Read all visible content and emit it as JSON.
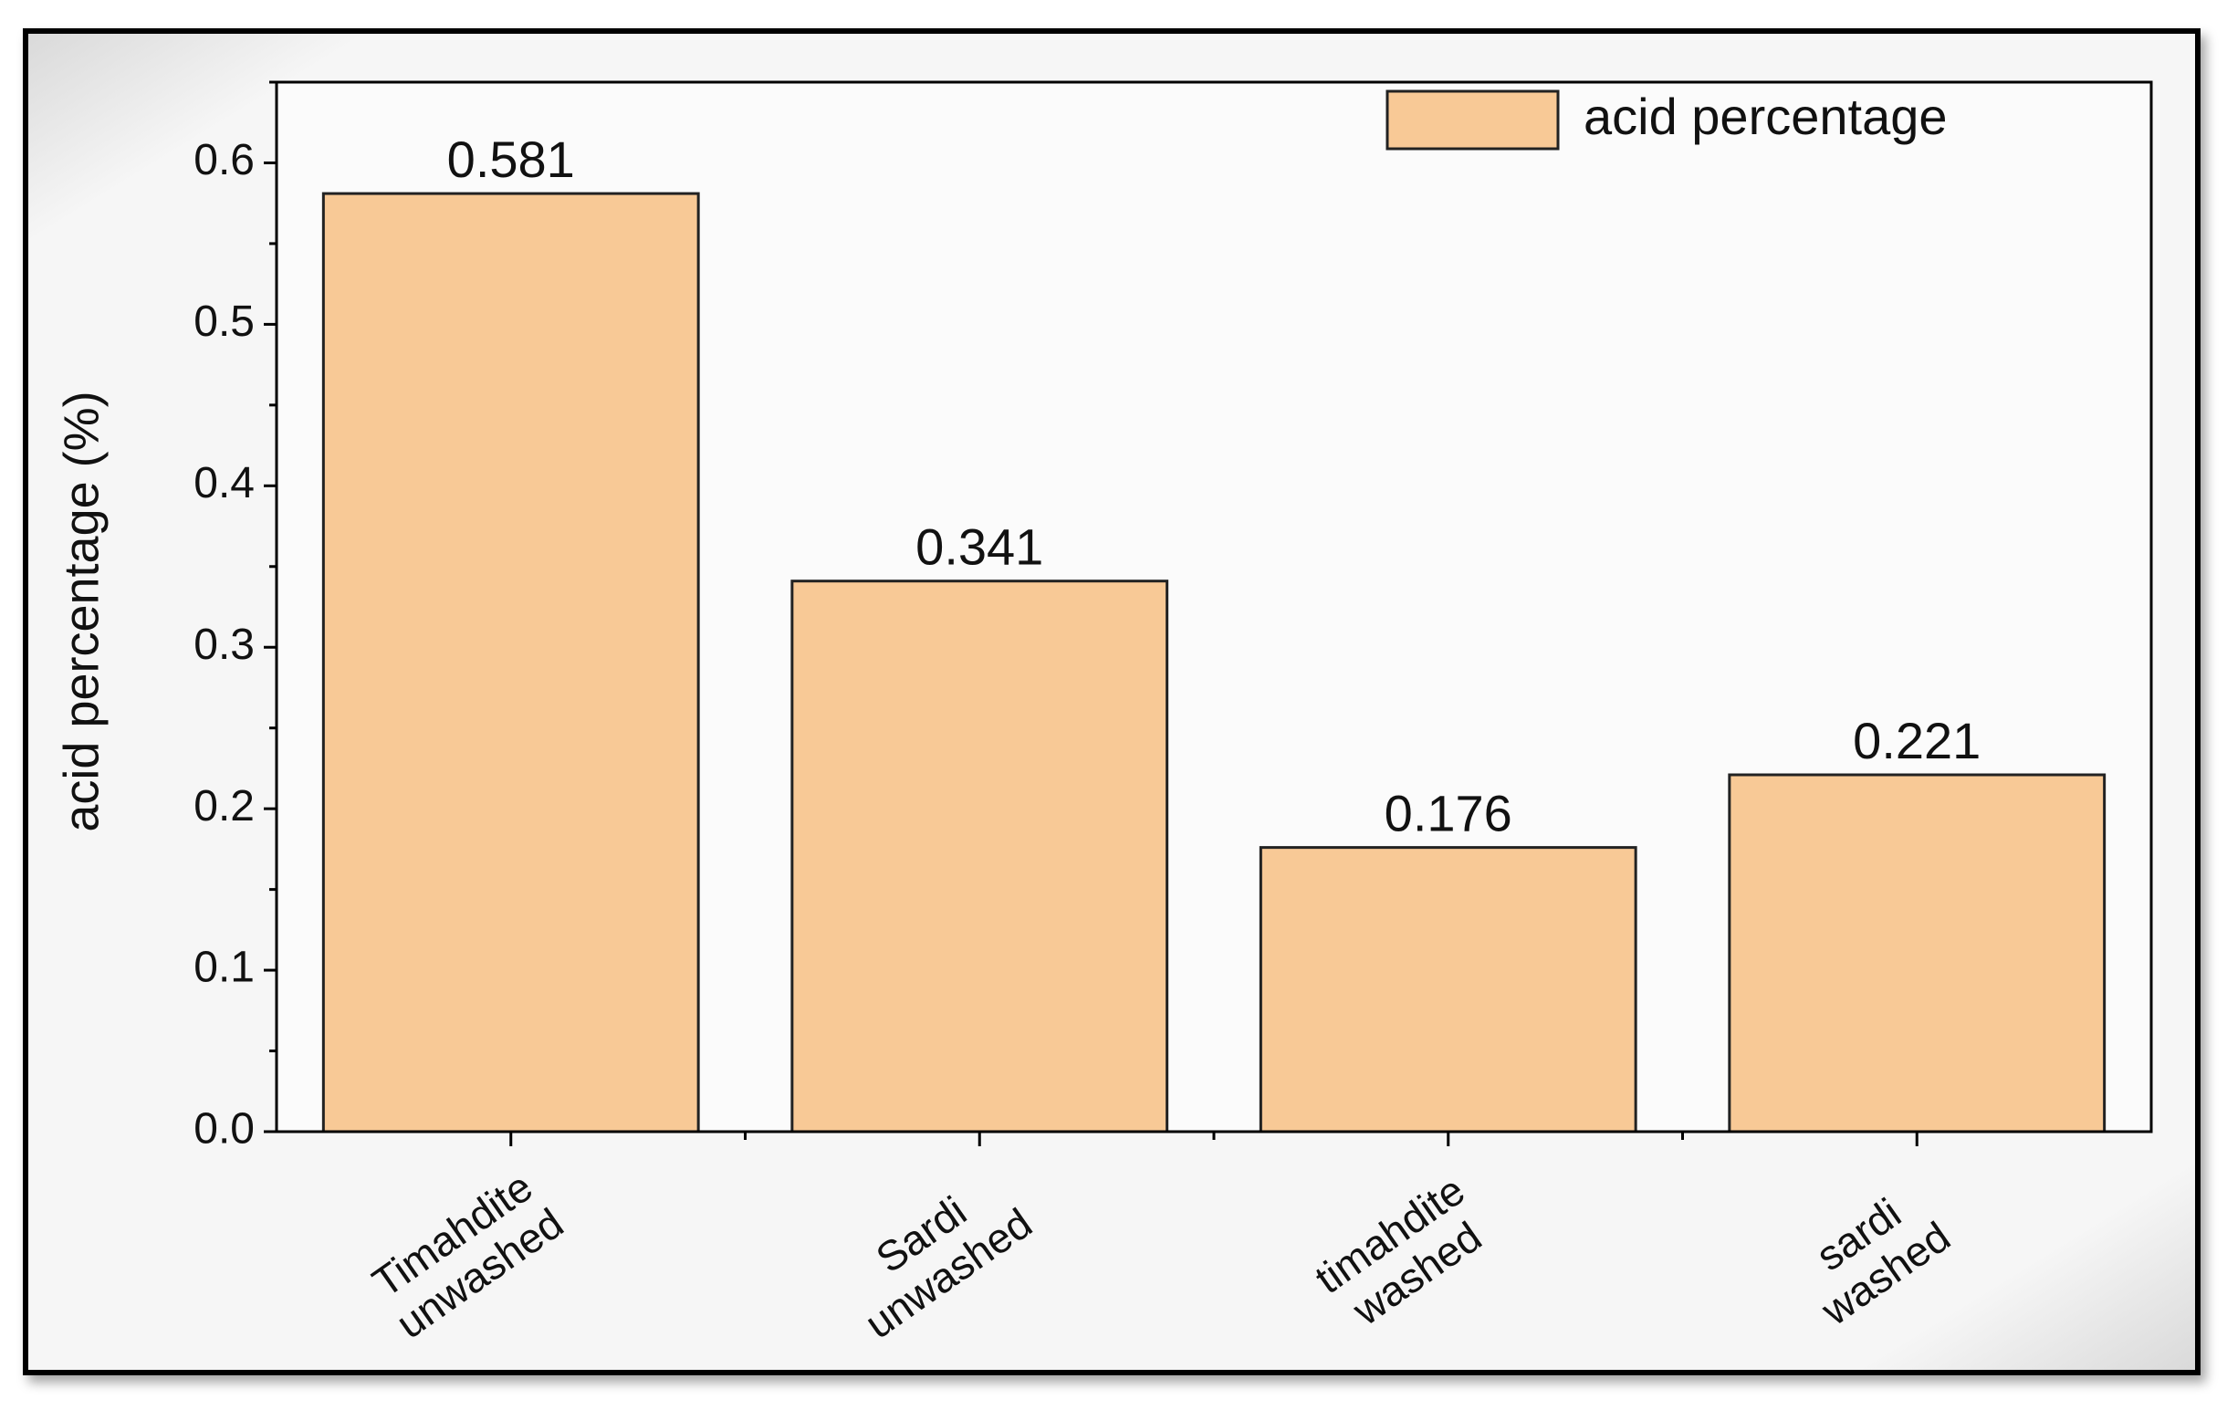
{
  "chart_data": {
    "type": "bar",
    "categories": [
      [
        "Timahdite",
        "unwashed"
      ],
      [
        "Sardi",
        "unwashed"
      ],
      [
        "timahdite",
        "washed"
      ],
      [
        "sardi",
        "washed"
      ]
    ],
    "series": [
      {
        "name": "acid percentage",
        "color": "#f8c996",
        "values": [
          0.581,
          0.341,
          0.176,
          0.221
        ]
      }
    ],
    "y_label": "acid percentage (%)",
    "ylim": [
      0,
      0.65
    ],
    "yticks": [
      {
        "value": 0,
        "label": "0.0"
      },
      0.1,
      0.2,
      0.3,
      0.4,
      0.5,
      0.6
    ],
    "legend": "upper right"
  }
}
